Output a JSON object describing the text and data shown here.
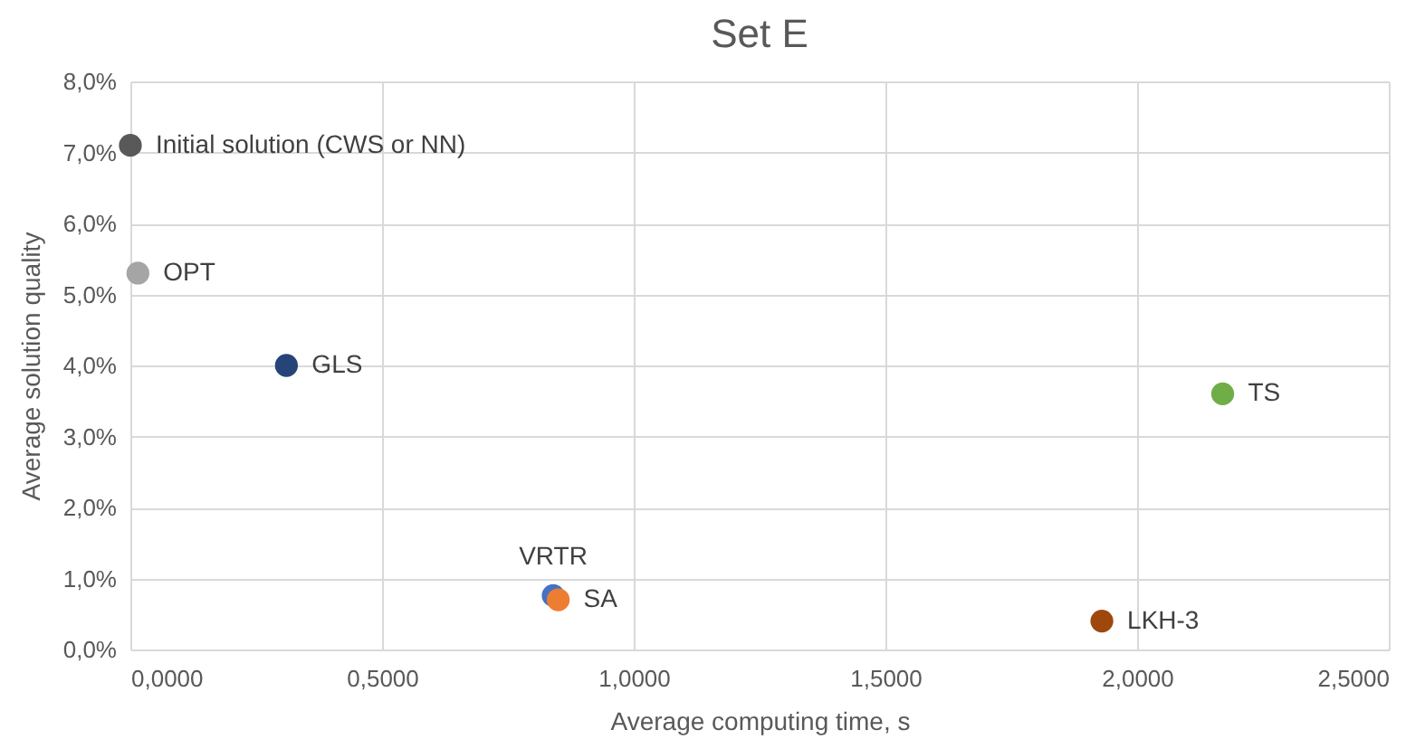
{
  "chart_data": {
    "type": "scatter",
    "title": "Set E",
    "xlabel": "Average computing time, s",
    "ylabel": "Average solution quality",
    "xlim": [
      0,
      2.5
    ],
    "xticks": [
      {
        "value": 0,
        "label": "0,0000"
      },
      {
        "value": 0.5,
        "label": "0,5000"
      },
      {
        "value": 1,
        "label": "1,0000"
      },
      {
        "value": 1.5,
        "label": "1,5000"
      },
      {
        "value": 2,
        "label": "2,0000"
      },
      {
        "value": 2.5,
        "label": "2,5000"
      }
    ],
    "ylim": [
      0,
      8
    ],
    "yticks": [
      {
        "value": 0,
        "label": "0,0%"
      },
      {
        "value": 1,
        "label": "1,0%"
      },
      {
        "value": 2,
        "label": "2,0%"
      },
      {
        "value": 3,
        "label": "3,0%"
      },
      {
        "value": 4,
        "label": "4,0%"
      },
      {
        "value": 5,
        "label": "5,0%"
      },
      {
        "value": 6,
        "label": "6,0%"
      },
      {
        "value": 7,
        "label": "7,0%"
      },
      {
        "value": 8,
        "label": "8,0%"
      }
    ],
    "grid": true,
    "marker": "circle",
    "series": [
      {
        "name": "Initial solution (CWS or NN)",
        "color": "#595959",
        "x": [
          0.0
        ],
        "values": [
          7.1
        ]
      },
      {
        "name": "OPT",
        "color": "#a5a5a5",
        "x": [
          0.015
        ],
        "values": [
          5.3
        ]
      },
      {
        "name": "GLS",
        "color": "#264478",
        "x": [
          0.31
        ],
        "values": [
          4.0
        ]
      },
      {
        "name": "VRTR",
        "color": "#4472c4",
        "x": [
          0.84
        ],
        "values": [
          0.76
        ]
      },
      {
        "name": "SA",
        "color": "#ed7d31",
        "x": [
          0.85
        ],
        "values": [
          0.7
        ]
      },
      {
        "name": "TS",
        "color": "#70ad47",
        "x": [
          2.17
        ],
        "values": [
          3.6
        ]
      },
      {
        "name": "LKH-3",
        "color": "#9e480e",
        "x": [
          1.93
        ],
        "values": [
          0.4
        ]
      }
    ]
  }
}
